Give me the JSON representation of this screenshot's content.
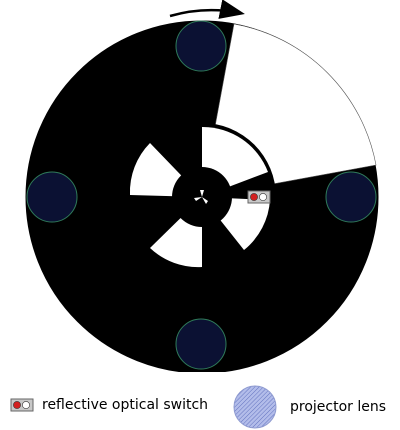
{
  "diagram": {
    "colors": {
      "disk": "#000000",
      "window": "#ffffff",
      "lens_fill": "#0b1133",
      "lens_stroke": "#2f7b5a",
      "legend_lens_fill": "#a9b5e8",
      "legend_lens_hatch": "#5566b8",
      "switch_body": "#c8c8c8",
      "switch_led_red": "#d22020",
      "switch_led_white": "#ffffff"
    },
    "icons": {
      "rotation": "curved-arrow-icon",
      "hub": "pinwheel-icon"
    }
  },
  "legend": {
    "switch_label": "reflective optical switch",
    "lens_label": "projector lens"
  }
}
